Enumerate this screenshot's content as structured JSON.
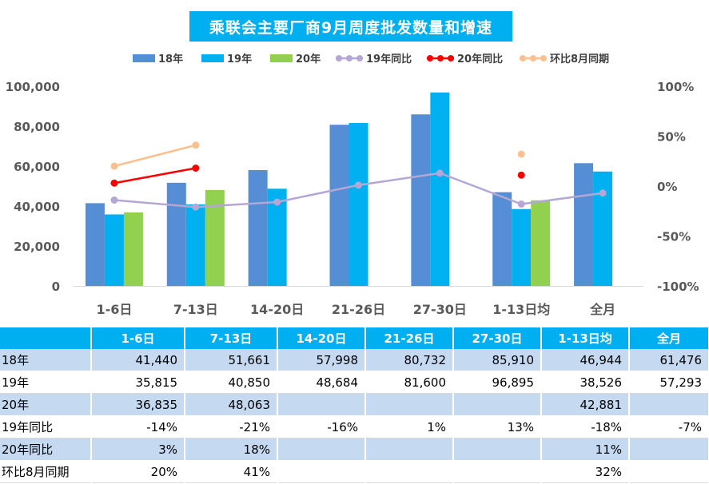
{
  "chart_data": {
    "type": "bar",
    "title": "乘联会主要厂商9月周度批发数量和增速",
    "categories": [
      "1-6日",
      "7-13日",
      "14-20日",
      "21-26日",
      "27-30日",
      "1-13日均",
      "全月"
    ],
    "series": [
      {
        "name": "18年",
        "kind": "bar",
        "axis": "left",
        "color": "#558ed5",
        "values": [
          41440,
          51661,
          57998,
          80732,
          85910,
          46944,
          61476
        ]
      },
      {
        "name": "19年",
        "kind": "bar",
        "axis": "left",
        "color": "#00b0f0",
        "values": [
          35815,
          40850,
          48684,
          81600,
          96895,
          38526,
          57293
        ]
      },
      {
        "name": "20年",
        "kind": "bar",
        "axis": "left",
        "color": "#92d050",
        "values": [
          36835,
          48063,
          null,
          null,
          null,
          42881,
          null
        ]
      },
      {
        "name": "19年同比",
        "kind": "line",
        "axis": "right",
        "color": "#b4a7d6",
        "values": [
          -14,
          -21,
          -16,
          1,
          13,
          -18,
          -7
        ]
      },
      {
        "name": "20年同比",
        "kind": "line",
        "axis": "right",
        "color": "#ff0000",
        "values": [
          3,
          18,
          null,
          null,
          null,
          11,
          null
        ]
      },
      {
        "name": "环比8月同期",
        "kind": "line",
        "axis": "right",
        "color": "#fac090",
        "values": [
          20,
          41,
          null,
          null,
          null,
          32,
          null
        ]
      }
    ],
    "y_left": {
      "min": 0,
      "max": 100000,
      "ticks": [
        "0",
        "20,000",
        "40,000",
        "60,000",
        "80,000",
        "100,000"
      ]
    },
    "y_right": {
      "min": -100,
      "max": 100,
      "ticks": [
        "-100%",
        "-50%",
        "0%",
        "50%",
        "100%"
      ]
    },
    "legend_position": "top",
    "grid": false
  },
  "table": {
    "headers": [
      "",
      "1-6日",
      "7-13日",
      "14-20日",
      "21-26日",
      "27-30日",
      "1-13日均",
      "全月"
    ],
    "rows": [
      {
        "label": "18年",
        "cells": [
          "41,440",
          "51,661",
          "57,998",
          "80,732",
          "85,910",
          "46,944",
          "61,476"
        ]
      },
      {
        "label": "19年",
        "cells": [
          "35,815",
          "40,850",
          "48,684",
          "81,600",
          "96,895",
          "38,526",
          "57,293"
        ]
      },
      {
        "label": "20年",
        "cells": [
          "36,835",
          "48,063",
          "",
          "",
          "",
          "42,881",
          ""
        ]
      },
      {
        "label": "19年同比",
        "cells": [
          "-14%",
          "-21%",
          "-16%",
          "1%",
          "13%",
          "-18%",
          "-7%"
        ]
      },
      {
        "label": "20年同比",
        "cells": [
          "3%",
          "18%",
          "",
          "",
          "",
          "11%",
          ""
        ]
      },
      {
        "label": "环比8月同期",
        "cells": [
          "20%",
          "41%",
          "",
          "",
          "",
          "32%",
          ""
        ]
      }
    ]
  }
}
